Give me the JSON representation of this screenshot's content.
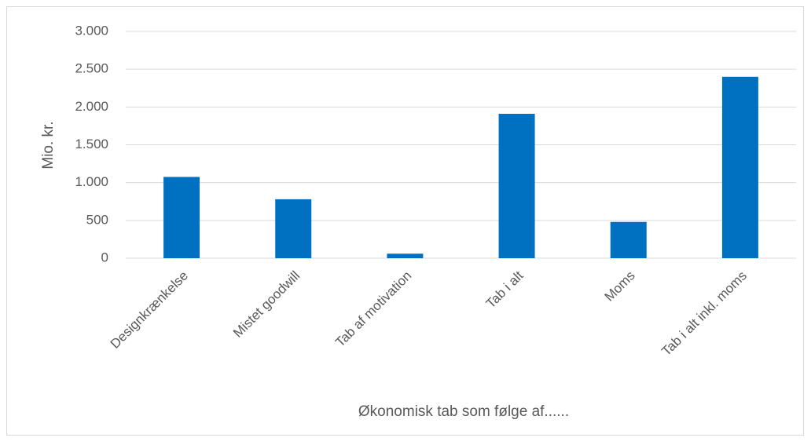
{
  "chart_data": {
    "type": "bar",
    "x_label": "Økonomisk tab som følge af......",
    "y_label": "Mio. kr.",
    "categories": [
      "Designkrænkelse",
      "Mistet goodwill",
      "Tab af motivation",
      "Tab i alt",
      "Moms",
      "Tab i alt inkl. moms"
    ],
    "values": [
      1075,
      780,
      60,
      1910,
      480,
      2400
    ],
    "color": "#0070c0",
    "ylim": [
      0,
      3000
    ],
    "yticks": [
      0,
      500,
      {
        "value": 1000,
        "label": "1.000"
      },
      {
        "value": 1500,
        "label": "1.500"
      },
      {
        "value": 2000,
        "label": "2.000"
      },
      {
        "value": 2500,
        "label": "2.500"
      },
      {
        "value": 3000,
        "label": "3.000"
      }
    ],
    "grid": true
  }
}
